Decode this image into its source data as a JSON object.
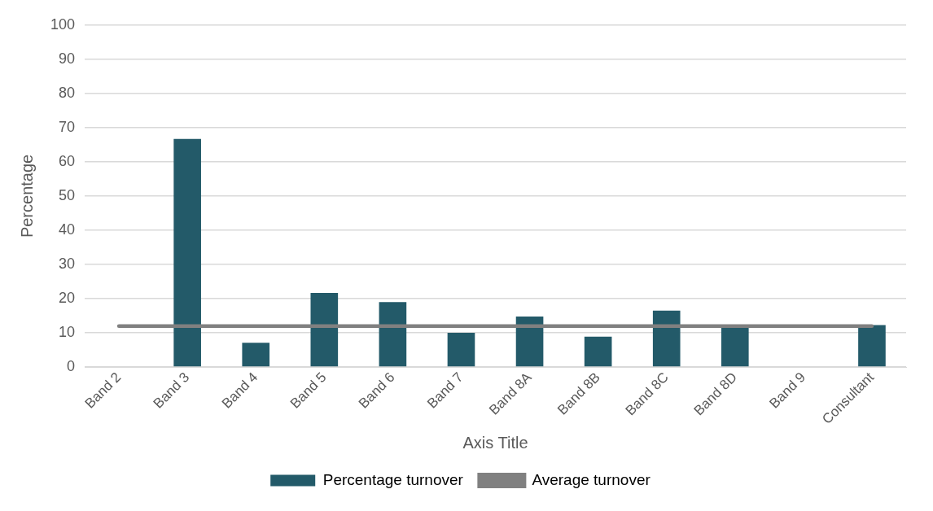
{
  "chart_data": {
    "type": "bar",
    "xlabel": "Axis Title",
    "ylabel": "Percentage",
    "categories": [
      "Band 2",
      "Band 3",
      "Band 4",
      "Band 5",
      "Band 6",
      "Band 7",
      "Band 8A",
      "Band 8B",
      "Band 8C",
      "Band 8D",
      "Band 9",
      "Consultant"
    ],
    "series": [
      {
        "name": "Percentage turnover",
        "color": "#235a69",
        "values": [
          0,
          66.7,
          7.1,
          21.7,
          19.0,
          10,
          14.8,
          8.9,
          16.5,
          12,
          0,
          12.3
        ]
      },
      {
        "name": "Average turnover",
        "type": "line",
        "color": "#808080",
        "values": [
          12,
          12,
          12,
          12,
          12,
          12,
          12,
          12,
          12,
          12,
          12,
          12
        ]
      }
    ],
    "ylim": [
      0,
      100
    ],
    "yticks": [
      0,
      10,
      20,
      30,
      40,
      50,
      60,
      70,
      80,
      90,
      100
    ],
    "grid": "y",
    "legend": "bottom",
    "marker": "none",
    "line_style": "solid"
  }
}
